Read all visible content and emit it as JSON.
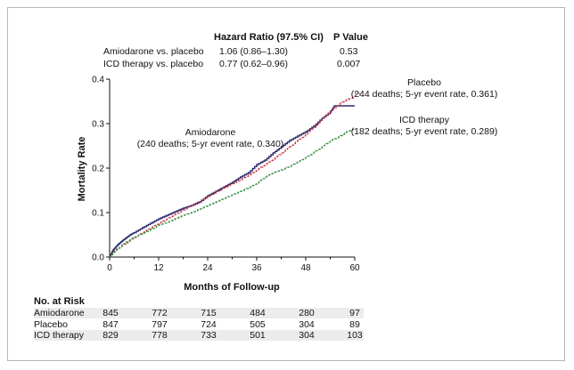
{
  "hazard_table": {
    "headers": {
      "hr": "Hazard Ratio (97.5% CI)",
      "p": "P Value"
    },
    "rows": [
      {
        "label": "Amiodarone vs. placebo",
        "hr": "1.06 (0.86–1.30)",
        "p": "0.53"
      },
      {
        "label": "ICD therapy vs. placebo",
        "hr": "0.77 (0.62–0.96)",
        "p": "0.007"
      }
    ]
  },
  "chart_data": {
    "type": "line",
    "xlabel": "Months of Follow-up",
    "ylabel": "Mortality Rate",
    "xlim": [
      0,
      60
    ],
    "ylim": [
      0,
      0.4
    ],
    "xticks": [
      0,
      12,
      24,
      36,
      48,
      60
    ],
    "xtick_labels": [
      "0",
      "12",
      "24",
      "36",
      "48",
      "60"
    ],
    "yticks": [
      0,
      0.1,
      0.2,
      0.3,
      0.4
    ],
    "ytick_labels": [
      "0.0",
      "0.1",
      "0.2",
      "0.3",
      "0.4"
    ],
    "series": [
      {
        "name": "Amiodarone",
        "style": "solid",
        "color": "#2b2a6e",
        "annotation": [
          "Amiodarone",
          "(240 deaths; 5-yr event rate, 0.340)"
        ],
        "points": [
          [
            0,
            0
          ],
          [
            0.5,
            0.01
          ],
          [
            1,
            0.018
          ],
          [
            2,
            0.028
          ],
          [
            3,
            0.036
          ],
          [
            4,
            0.043
          ],
          [
            5,
            0.05
          ],
          [
            6,
            0.055
          ],
          [
            8,
            0.066
          ],
          [
            10,
            0.076
          ],
          [
            12,
            0.086
          ],
          [
            14,
            0.094
          ],
          [
            16,
            0.102
          ],
          [
            18,
            0.11
          ],
          [
            20,
            0.116
          ],
          [
            22,
            0.124
          ],
          [
            24,
            0.138
          ],
          [
            26,
            0.148
          ],
          [
            28,
            0.158
          ],
          [
            30,
            0.168
          ],
          [
            32,
            0.18
          ],
          [
            34,
            0.19
          ],
          [
            36,
            0.208
          ],
          [
            38,
            0.218
          ],
          [
            40,
            0.234
          ],
          [
            42,
            0.248
          ],
          [
            44,
            0.262
          ],
          [
            46,
            0.272
          ],
          [
            48,
            0.282
          ],
          [
            50,
            0.295
          ],
          [
            52,
            0.312
          ],
          [
            54,
            0.326
          ],
          [
            55,
            0.34
          ],
          [
            60,
            0.34
          ]
        ]
      },
      {
        "name": "Placebo",
        "style": "dashed",
        "color": "#c8293a",
        "annotation": [
          "Placebo",
          "(244 deaths; 5-yr event rate, 0.361)"
        ],
        "points": [
          [
            0,
            0
          ],
          [
            1,
            0.012
          ],
          [
            2,
            0.02
          ],
          [
            4,
            0.032
          ],
          [
            6,
            0.044
          ],
          [
            8,
            0.055
          ],
          [
            10,
            0.066
          ],
          [
            12,
            0.076
          ],
          [
            14,
            0.086
          ],
          [
            16,
            0.096
          ],
          [
            18,
            0.106
          ],
          [
            20,
            0.116
          ],
          [
            22,
            0.126
          ],
          [
            24,
            0.136
          ],
          [
            26,
            0.146
          ],
          [
            28,
            0.156
          ],
          [
            30,
            0.165
          ],
          [
            32,
            0.174
          ],
          [
            34,
            0.184
          ],
          [
            36,
            0.196
          ],
          [
            38,
            0.208
          ],
          [
            40,
            0.22
          ],
          [
            42,
            0.234
          ],
          [
            44,
            0.248
          ],
          [
            46,
            0.262
          ],
          [
            48,
            0.276
          ],
          [
            50,
            0.292
          ],
          [
            52,
            0.312
          ],
          [
            54,
            0.328
          ],
          [
            56,
            0.344
          ],
          [
            58,
            0.354
          ],
          [
            60,
            0.361
          ]
        ]
      },
      {
        "name": "ICD therapy",
        "style": "dashed",
        "color": "#2e8b3a",
        "annotation": [
          "ICD therapy",
          "(182 deaths; 5-yr event rate, 0.289)"
        ],
        "points": [
          [
            0,
            0
          ],
          [
            1,
            0.01
          ],
          [
            2,
            0.02
          ],
          [
            4,
            0.034
          ],
          [
            6,
            0.045
          ],
          [
            8,
            0.053
          ],
          [
            10,
            0.062
          ],
          [
            12,
            0.072
          ],
          [
            14,
            0.078
          ],
          [
            16,
            0.086
          ],
          [
            18,
            0.094
          ],
          [
            20,
            0.1
          ],
          [
            22,
            0.108
          ],
          [
            24,
            0.116
          ],
          [
            26,
            0.124
          ],
          [
            28,
            0.132
          ],
          [
            30,
            0.14
          ],
          [
            32,
            0.148
          ],
          [
            34,
            0.156
          ],
          [
            36,
            0.166
          ],
          [
            38,
            0.18
          ],
          [
            40,
            0.19
          ],
          [
            42,
            0.196
          ],
          [
            44,
            0.204
          ],
          [
            46,
            0.214
          ],
          [
            48,
            0.224
          ],
          [
            50,
            0.236
          ],
          [
            52,
            0.248
          ],
          [
            54,
            0.262
          ],
          [
            56,
            0.27
          ],
          [
            58,
            0.282
          ],
          [
            60,
            0.289
          ]
        ]
      }
    ]
  },
  "risk_table": {
    "title": "No. at Risk",
    "rows": [
      {
        "label": "Amiodarone",
        "values": [
          "845",
          "772",
          "715",
          "484",
          "280",
          "97"
        ]
      },
      {
        "label": "Placebo",
        "values": [
          "847",
          "797",
          "724",
          "505",
          "304",
          "89"
        ]
      },
      {
        "label": "ICD therapy",
        "values": [
          "829",
          "778",
          "733",
          "501",
          "304",
          "103"
        ]
      }
    ]
  }
}
